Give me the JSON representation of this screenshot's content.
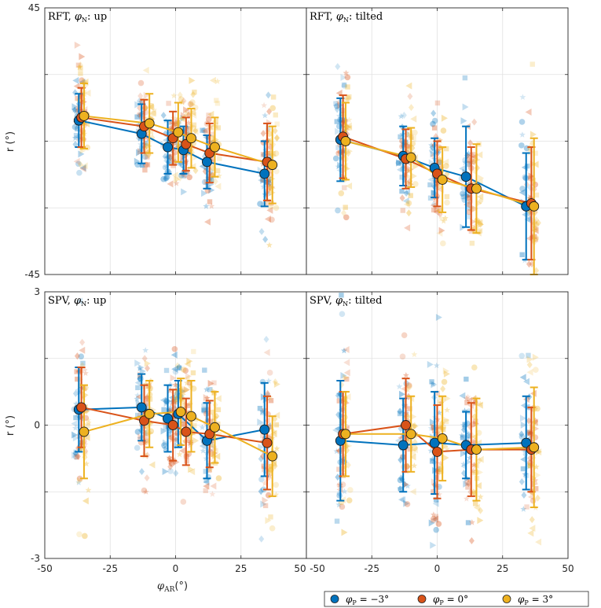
{
  "colors": {
    "blue": "#0072BD",
    "red": "#D95319",
    "yellow": "#EDB120",
    "grid": "#e1e1e1",
    "axis": "#262626"
  },
  "shared": {
    "xlabel_main": "φ",
    "xlabel_sub": "AR",
    "xlabel_unit": "(°)",
    "ylabel": "r (°)",
    "x_ticks": [
      -50,
      -25,
      0,
      25,
      50
    ],
    "xlim": [
      -50,
      50
    ]
  },
  "legend": [
    {
      "label": "φP = −3°",
      "main": "φ",
      "sub": "P",
      "rest": " = −3°",
      "color_key": "blue"
    },
    {
      "label": "φP = 0°",
      "main": "φ",
      "sub": "P",
      "rest": " = 0°",
      "color_key": "red"
    },
    {
      "label": "φP = 3°",
      "main": "φ",
      "sub": "P",
      "rest": " = 3°",
      "color_key": "yellow"
    }
  ],
  "chart_data": [
    {
      "type": "line",
      "title": "RFT, φN: up",
      "title_prefix": "RFT, ",
      "title_sym": "φ",
      "title_sub": "N",
      "title_suffix": ": up",
      "ylim": [
        -45,
        45
      ],
      "y_ticks": [
        45,
        -45
      ],
      "grid_y": [
        -22.5,
        0,
        22.5
      ],
      "series": [
        {
          "name": "φP = −3°",
          "x": [
            -37,
            -13,
            -3,
            3,
            12,
            34
          ],
          "y": [
            7,
            2.5,
            -2,
            -3,
            -7,
            -11
          ],
          "err": [
            9,
            10,
            9,
            8,
            9,
            11
          ]
        },
        {
          "name": "φP = 0°",
          "x": [
            -36,
            -12,
            -1,
            4,
            13,
            35
          ],
          "y": [
            8,
            5,
            1,
            -1,
            -4,
            -7
          ],
          "err": [
            10,
            9,
            9,
            9,
            10,
            13
          ]
        },
        {
          "name": "φP = 3°",
          "x": [
            -35,
            -10,
            1,
            6,
            15,
            37
          ],
          "y": [
            8.5,
            6,
            3,
            1,
            -2,
            -8
          ],
          "err": [
            11,
            10,
            10,
            10,
            10,
            13
          ]
        }
      ]
    },
    {
      "type": "line",
      "title": "RFT, φN: tilted",
      "title_prefix": "RFT, ",
      "title_sym": "φ",
      "title_sub": "N",
      "title_suffix": ": tilted",
      "ylim": [
        -45,
        45
      ],
      "y_ticks": [],
      "grid_y": [
        -22.5,
        0,
        22.5
      ],
      "series": [
        {
          "name": "φP = −3°",
          "x": [
            -37,
            -13,
            -1,
            11,
            34
          ],
          "y": [
            0.5,
            -5,
            -9,
            -12,
            -22
          ],
          "err": [
            14,
            10,
            10,
            17,
            18
          ]
        },
        {
          "name": "φP = 0°",
          "x": [
            -36,
            -12,
            0,
            13,
            36
          ],
          "y": [
            1.5,
            -6,
            -11,
            -16,
            -21
          ],
          "err": [
            14,
            10,
            11,
            14,
            19
          ]
        },
        {
          "name": "φP = 3°",
          "x": [
            -35,
            -10,
            2,
            15,
            37
          ],
          "y": [
            0,
            -5.5,
            -13,
            -16,
            -22
          ],
          "err": [
            13,
            10,
            11,
            15,
            23
          ]
        }
      ]
    },
    {
      "type": "line",
      "title": "SPV, φN: up",
      "title_prefix": "SPV, ",
      "title_sym": "φ",
      "title_sub": "N",
      "title_suffix": ": up",
      "ylim": [
        -3,
        3
      ],
      "y_ticks": [
        3,
        0,
        -3
      ],
      "grid_y": [
        -1.5,
        0,
        1.5
      ],
      "series": [
        {
          "name": "φP = −3°",
          "x": [
            -37,
            -13,
            -3,
            1,
            12,
            34
          ],
          "y": [
            0.35,
            0.4,
            0.15,
            0.25,
            -0.35,
            -0.1
          ],
          "err": [
            0.95,
            0.75,
            0.75,
            0.75,
            0.85,
            1.05
          ]
        },
        {
          "name": "φP = 0°",
          "x": [
            -36,
            -12,
            -1,
            4,
            13,
            35
          ],
          "y": [
            0.4,
            0.1,
            0.0,
            -0.15,
            -0.2,
            -0.4
          ],
          "err": [
            0.9,
            0.8,
            0.8,
            0.75,
            0.75,
            1.05
          ]
        },
        {
          "name": "φP = 3°",
          "x": [
            -35,
            -10,
            2,
            6,
            15,
            37
          ],
          "y": [
            -0.15,
            0.25,
            0.3,
            0.2,
            -0.05,
            -0.7
          ],
          "err": [
            1.05,
            0.75,
            0.75,
            0.8,
            0.8,
            0.9
          ]
        }
      ]
    },
    {
      "type": "line",
      "title": "SPV, φN: tilted",
      "title_prefix": "SPV, ",
      "title_sym": "φ",
      "title_sub": "N",
      "title_suffix": ": tilted",
      "ylim": [
        -3,
        3
      ],
      "y_ticks": [],
      "grid_y": [
        -1.5,
        0,
        1.5
      ],
      "series": [
        {
          "name": "φP = −3°",
          "x": [
            -37,
            -13,
            -1,
            11,
            34
          ],
          "y": [
            -0.35,
            -0.45,
            -0.4,
            -0.45,
            -0.4
          ],
          "err": [
            1.35,
            1.05,
            1.15,
            0.75,
            1.05
          ]
        },
        {
          "name": "φP = 0°",
          "x": [
            -36,
            -12,
            0,
            13,
            36
          ],
          "y": [
            -0.2,
            0.0,
            -0.6,
            -0.55,
            -0.55
          ],
          "err": [
            0.95,
            1.05,
            1.05,
            1.05,
            0.95
          ]
        },
        {
          "name": "φP = 3°",
          "x": [
            -35,
            -10,
            2,
            15,
            37
          ],
          "y": [
            -0.2,
            -0.2,
            -0.3,
            -0.55,
            -0.5
          ],
          "err": [
            0.95,
            0.85,
            0.95,
            1.15,
            1.35
          ]
        }
      ]
    }
  ]
}
